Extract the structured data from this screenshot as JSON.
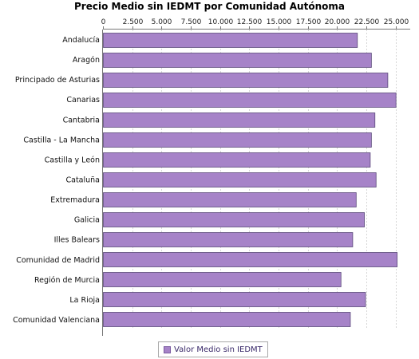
{
  "chart_data": {
    "type": "bar",
    "orientation": "horizontal",
    "title": "Precio Medio sin IEDMT por Comunidad Autónoma",
    "xlabel": "",
    "ylabel": "",
    "xlim": [
      0,
      26250
    ],
    "x_ticks": [
      0,
      2500,
      5000,
      7500,
      10000,
      12500,
      15000,
      17500,
      20000,
      22500,
      25000
    ],
    "x_tick_labels": [
      "0",
      "2.500",
      "5.000",
      "7.500",
      "10.000",
      "12.500",
      "15.000",
      "17.500",
      "20.000",
      "22.500",
      "25.000"
    ],
    "axis_position": "top",
    "grid": true,
    "legend_position": "bottom",
    "categories": [
      "Andalucía",
      "Aragón",
      "Principado de Asturias",
      "Canarias",
      "Cantabria",
      "Castilla - La Mancha",
      "Castilla y León",
      "Cataluña",
      "Extremadura",
      "Galicia",
      "Illes Balears",
      "Comunidad de Madrid",
      "Región de Murcia",
      "La Rioja",
      "Comunidad Valenciana"
    ],
    "series": [
      {
        "name": "Valor Medio sin IEDMT",
        "color": "#a683c8",
        "values": [
          21700,
          22900,
          24300,
          25000,
          23200,
          22900,
          22800,
          23300,
          21600,
          22300,
          21300,
          25100,
          20300,
          22400,
          21100
        ]
      }
    ]
  }
}
